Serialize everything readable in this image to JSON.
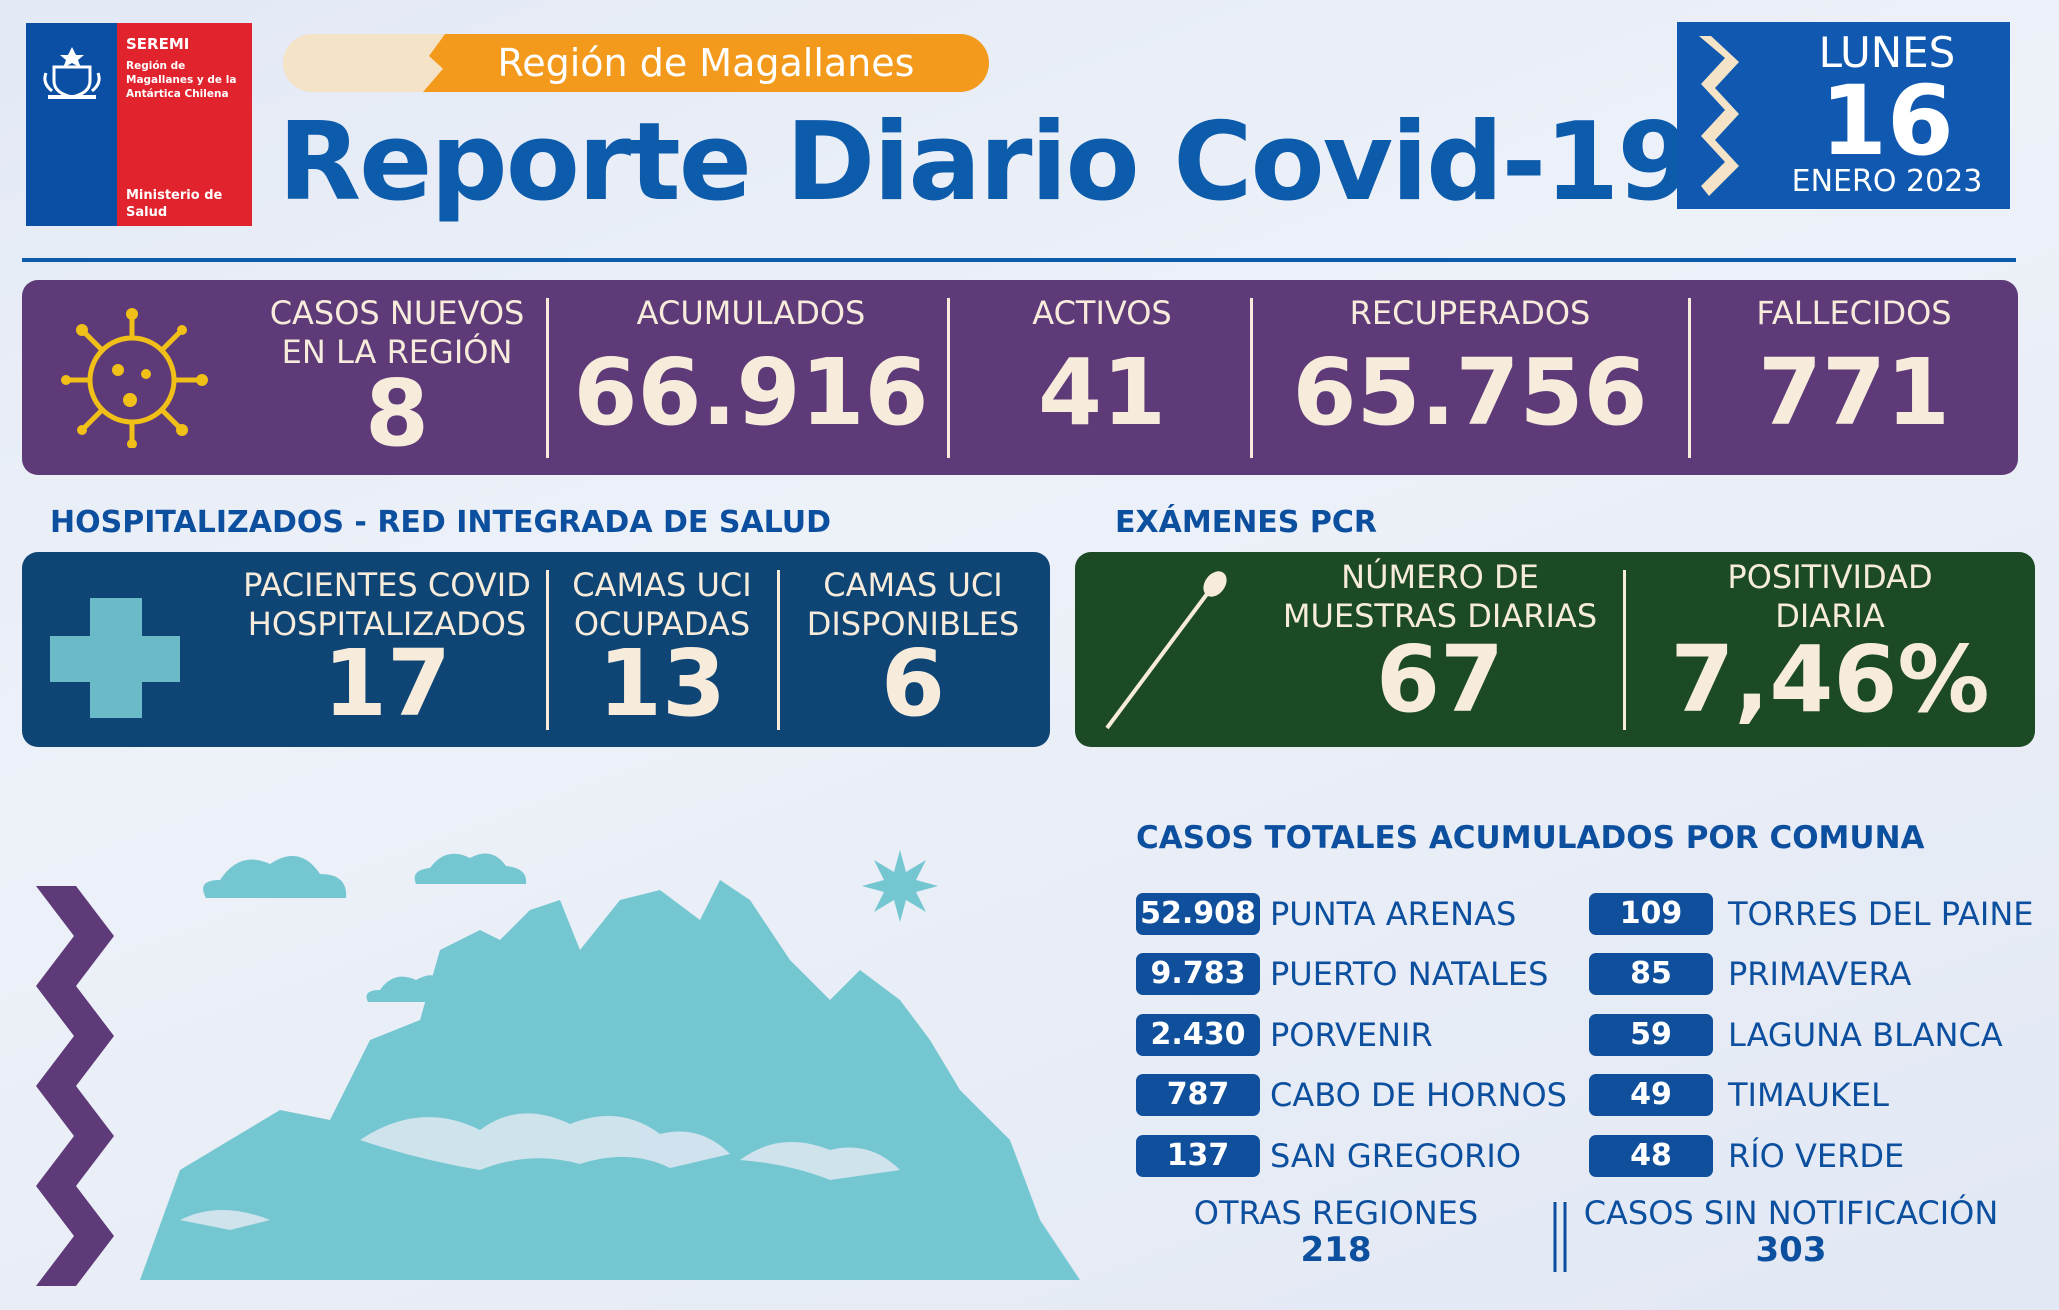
{
  "logo": {
    "seremi": "SEREMI",
    "region": "Región de Magallanes y de la Antártica Chilena",
    "ministry": "Ministerio de Salud"
  },
  "header": {
    "region_banner": "Región de Magallanes",
    "title": "Reporte Diario Covid-19"
  },
  "date": {
    "weekday": "LUNES",
    "day": "16",
    "month_year": "ENERO 2023"
  },
  "summary": [
    {
      "label1": "CASOS NUEVOS",
      "label2": "EN LA REGIÓN",
      "value": "8"
    },
    {
      "label1": "ACUMULADOS",
      "label2": "",
      "value": "66.916"
    },
    {
      "label1": "ACTIVOS",
      "label2": "",
      "value": "41"
    },
    {
      "label1": "RECUPERADOS",
      "label2": "",
      "value": "65.756"
    },
    {
      "label1": "FALLECIDOS",
      "label2": "",
      "value": "771"
    }
  ],
  "hospital": {
    "title": "HOSPITALIZADOS - RED INTEGRADA DE SALUD",
    "items": [
      {
        "label1": "PACIENTES COVID",
        "label2": "HOSPITALIZADOS",
        "value": "17"
      },
      {
        "label1": "CAMAS UCI",
        "label2": "OCUPADAS",
        "value": "13"
      },
      {
        "label1": "CAMAS UCI",
        "label2": "DISPONIBLES",
        "value": "6"
      }
    ]
  },
  "pcr": {
    "title": "EXÁMENES PCR",
    "items": [
      {
        "label1": "NÚMERO DE",
        "label2": "MUESTRAS DIARIAS",
        "value": "67"
      },
      {
        "label1": "POSITIVIDAD",
        "label2": "DIARIA",
        "value": "7,46%"
      }
    ]
  },
  "comunas": {
    "title": "CASOS TOTALES ACUMULADOS POR COMUNA",
    "left": [
      {
        "value": "52.908",
        "name": "PUNTA ARENAS"
      },
      {
        "value": "9.783",
        "name": "PUERTO NATALES"
      },
      {
        "value": "2.430",
        "name": "PORVENIR"
      },
      {
        "value": "787",
        "name": "CABO DE HORNOS"
      },
      {
        "value": "137",
        "name": "SAN GREGORIO"
      }
    ],
    "right": [
      {
        "value": "109",
        "name": "TORRES DEL PAINE"
      },
      {
        "value": "85",
        "name": "PRIMAVERA"
      },
      {
        "value": "59",
        "name": "LAGUNA BLANCA"
      },
      {
        "value": "49",
        "name": "TIMAUKEL"
      },
      {
        "value": "48",
        "name": "RÍO VERDE"
      }
    ],
    "otras_label": "OTRAS REGIONES",
    "otras_value": "218",
    "sin_label": "CASOS SIN NOTIFICACIÓN",
    "sin_value": "303"
  },
  "colors": {
    "primary_blue": "#0d5bab",
    "purple": "#5e3a78",
    "navy": "#0f4574",
    "green": "#1c4a25",
    "orange": "#f39a1c",
    "cream": "#f7ecdc",
    "ice": "#74c7d1"
  }
}
